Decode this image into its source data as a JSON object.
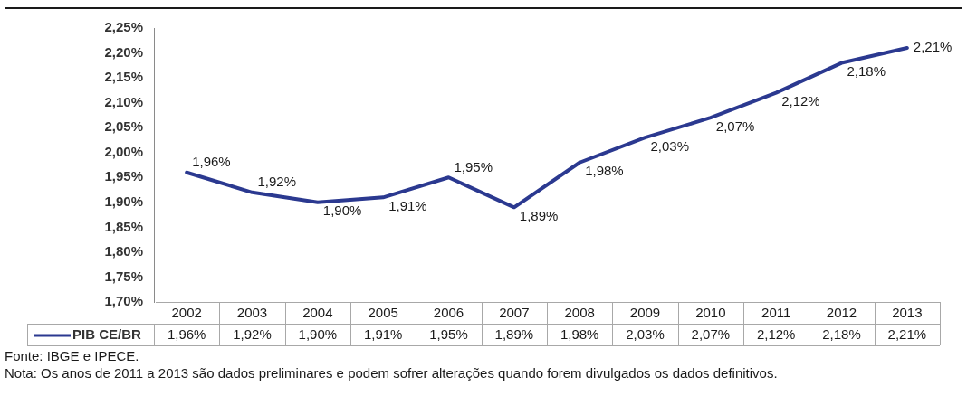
{
  "chart_data": {
    "type": "line",
    "categories": [
      "2002",
      "2003",
      "2004",
      "2005",
      "2006",
      "2007",
      "2008",
      "2009",
      "2010",
      "2011",
      "2012",
      "2013"
    ],
    "series": [
      {
        "name": "PIB CE/BR",
        "color": "#2b3990",
        "values": [
          1.96,
          1.92,
          1.9,
          1.91,
          1.95,
          1.89,
          1.98,
          2.03,
          2.07,
          2.12,
          2.18,
          2.21
        ],
        "value_labels": [
          "1,96%",
          "1,92%",
          "1,90%",
          "1,91%",
          "1,95%",
          "1,89%",
          "1,98%",
          "2,03%",
          "2,07%",
          "2,12%",
          "2,18%",
          "2,21%"
        ]
      }
    ],
    "ylim": [
      1.7,
      2.25
    ],
    "yticks": [
      {
        "value": 1.7,
        "label": "1,70%"
      },
      {
        "value": 1.75,
        "label": "1,75%"
      },
      {
        "value": 1.8,
        "label": "1,80%"
      },
      {
        "value": 1.85,
        "label": "1,85%"
      },
      {
        "value": 1.9,
        "label": "1,90%"
      },
      {
        "value": 1.95,
        "label": "1,95%"
      },
      {
        "value": 2.0,
        "label": "2,00%"
      },
      {
        "value": 2.05,
        "label": "2,05%"
      },
      {
        "value": 2.1,
        "label": "2,10%"
      },
      {
        "value": 2.15,
        "label": "2,15%"
      },
      {
        "value": 2.2,
        "label": "2,20%"
      },
      {
        "value": 2.25,
        "label": "2,25%"
      }
    ],
    "grid": false,
    "legend": "bottom left",
    "marker": "none",
    "line_style": "solid",
    "annotations": [
      "Fonte: IBGE e IPECE.",
      "Nota: Os anos de 2011 a 2013 são dados preliminares e podem sofrer alterações quando forem divulgados os dados definitivos."
    ]
  }
}
